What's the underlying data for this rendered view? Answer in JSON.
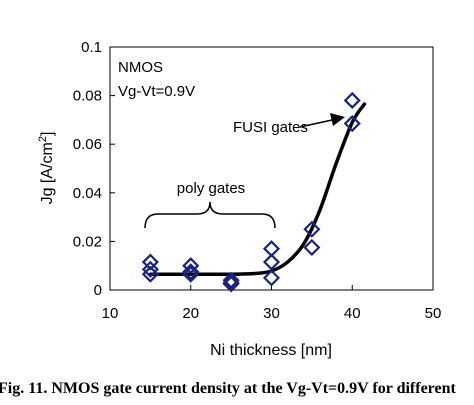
{
  "chart_data": {
    "type": "scatter",
    "xlabel": "Ni thickness [nm]",
    "ylabel_main": "Jg [A/cm",
    "ylabel_sup": "2",
    "ylabel_close": "]",
    "xlim": [
      10,
      50
    ],
    "ylim": [
      0,
      0.1
    ],
    "xticks": [
      10,
      20,
      30,
      40,
      50
    ],
    "yticks": [
      0,
      0.02,
      0.04,
      0.06,
      0.08,
      0.1
    ],
    "xtick_labels": [
      "10",
      "20",
      "30",
      "40",
      "50"
    ],
    "ytick_labels": [
      "0",
      "0.02",
      "0.04",
      "0.06",
      "0.08",
      "0.1"
    ],
    "grid": false,
    "marker": "open-diamond",
    "marker_color": "#1a237e",
    "line_color": "#000000",
    "points": [
      {
        "x": 15,
        "y": 0.0115
      },
      {
        "x": 15,
        "y": 0.0085
      },
      {
        "x": 15,
        "y": 0.0065
      },
      {
        "x": 20,
        "y": 0.01
      },
      {
        "x": 20,
        "y": 0.0075
      },
      {
        "x": 20,
        "y": 0.0065
      },
      {
        "x": 25,
        "y": 0.004
      },
      {
        "x": 25,
        "y": 0.003
      },
      {
        "x": 25,
        "y": 0.0025
      },
      {
        "x": 30,
        "y": 0.017
      },
      {
        "x": 30,
        "y": 0.0115
      },
      {
        "x": 30,
        "y": 0.005
      },
      {
        "x": 35,
        "y": 0.025
      },
      {
        "x": 35,
        "y": 0.0175
      },
      {
        "x": 40,
        "y": 0.078
      },
      {
        "x": 40,
        "y": 0.0685
      }
    ],
    "fit_curve": {
      "x": [
        15,
        20,
        25,
        28,
        30,
        32,
        34,
        36,
        38,
        40,
        41.5
      ],
      "y": [
        0.0065,
        0.0065,
        0.0065,
        0.0068,
        0.0078,
        0.0115,
        0.019,
        0.033,
        0.052,
        0.069,
        0.0765
      ]
    },
    "annotations": {
      "nmos": "NMOS",
      "bias": "Vg-Vt=0.9V",
      "poly": "poly gates",
      "fusi": "FUSI gates"
    },
    "caption": "Fig. 11. NMOS gate current density at the Vg-Vt=0.9V for different"
  }
}
